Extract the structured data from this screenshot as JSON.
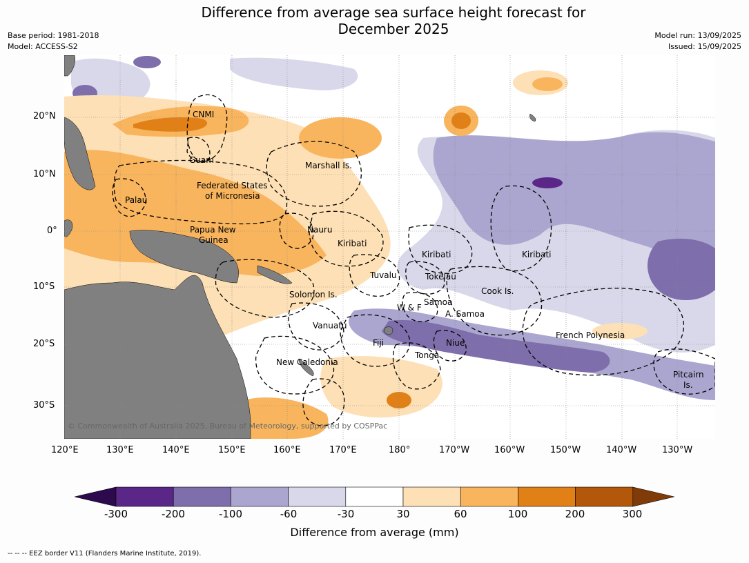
{
  "title": {
    "line1": "Difference from average sea surface height forecast for",
    "line2": "December 2025"
  },
  "meta": {
    "base_period": "Base period: 1981-2018",
    "model": "Model: ACCESS-S2",
    "model_run": "Model run: 13/09/2025",
    "issued": "Issued: 15/09/2025"
  },
  "map": {
    "copyright": "© Commonwealth of Australia 2025, Bureau of Meteorology, supported by COSPPac",
    "lat_labels": [
      "20°N",
      "10°N",
      "0°",
      "10°S",
      "20°S",
      "30°S"
    ],
    "lon_labels": [
      "120°E",
      "130°E",
      "140°E",
      "150°E",
      "160°E",
      "170°E",
      "180°",
      "170°W",
      "160°W",
      "150°W",
      "140°W",
      "130°W"
    ],
    "region_labels": {
      "cnmi": "CNMI",
      "guam": "Guam",
      "marshall": "Marshall Is.",
      "fsm1": "Federated States",
      "fsm2": "of Micronesia",
      "palau": "Palau",
      "png1": "Papua New",
      "png2": "Guinea",
      "nauru": "Nauru",
      "kiribati_w": "Kiribati",
      "kiribati_c": "Kiribati",
      "kiribati_e": "Kiribati",
      "tuvalu": "Tuvalu",
      "tokelau": "Tokelau",
      "cook": "Cook Is.",
      "solomon": "Solomon Is.",
      "wf": "W & F",
      "samoa": "Samoa",
      "asamoa": "A. Samoa",
      "vanuatu": "Vanuatu",
      "fiji": "Fiji",
      "niue": "Niue",
      "tonga": "Tonga",
      "frpoly": "French Polynesia",
      "newcal": "New Caledonia",
      "pitcairn1": "Pitcairn",
      "pitcairn2": "Is."
    }
  },
  "colorbar": {
    "title": "Difference from average (mm)",
    "ticks": [
      "-300",
      "-200",
      "-100",
      "-60",
      "-30",
      "30",
      "60",
      "100",
      "200",
      "300"
    ],
    "colors": [
      "#2d0a4e",
      "#5a2788",
      "#7e6eab",
      "#aba6cf",
      "#d8d8ea",
      "#ffffff",
      "#fde0b5",
      "#f8b55e",
      "#e08016",
      "#b3580a",
      "#7f3b08"
    ],
    "land_color": "#808080"
  },
  "footnote": "--  --  -- EEZ border V11 (Flanders Marine Institute, 2019)."
}
